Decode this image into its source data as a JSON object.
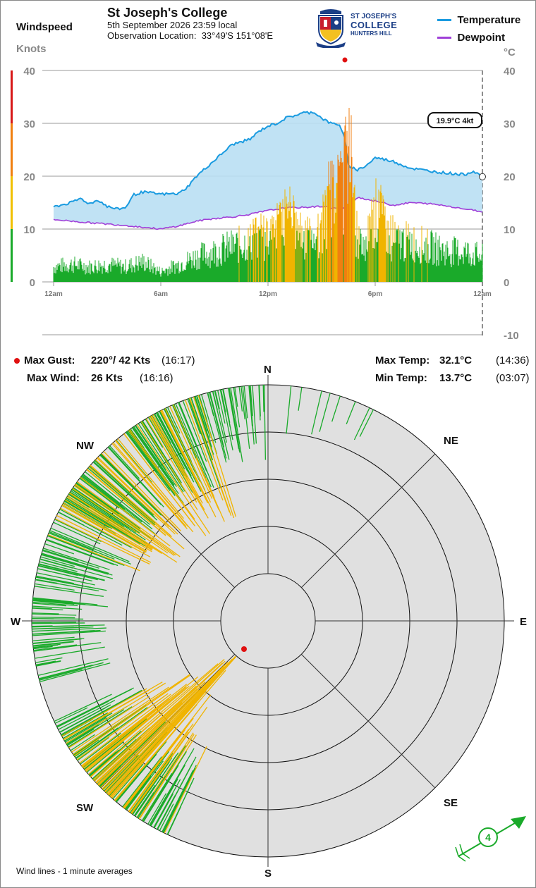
{
  "header": {
    "station": "St Joseph's College",
    "datetime": "5th September 2026  23:59 local",
    "location_label": "Observation Location:",
    "location_value": "33°49'S 151°08'E",
    "logo": {
      "line1": "ST JOSEPH'S",
      "line2": "COLLEGE",
      "line3": "HUNTERS HILL"
    }
  },
  "legend": {
    "temperature": "Temperature",
    "dewpoint": "Dewpoint"
  },
  "left_axis": {
    "title": "Windspeed",
    "units": "Knots"
  },
  "right_axis": {
    "units": "°C"
  },
  "readout": {
    "text": "19.9°C  4kt"
  },
  "stats": {
    "max_gust_label": "Max Gust:",
    "max_gust_value": "220°/  42 Kts",
    "max_gust_time": "(16:17)",
    "max_wind_label": "Max Wind:",
    "max_wind_value": "26 Kts",
    "max_wind_time": "(16:16)",
    "max_temp_label": "Max Temp:",
    "max_temp_value": "32.1°C",
    "max_temp_time": "(14:36)",
    "min_temp_label": "Min Temp:",
    "min_temp_value": "13.7°C",
    "min_temp_time": "(03:07)"
  },
  "compass": {
    "n": "N",
    "ne": "NE",
    "e": "E",
    "se": "SE",
    "s": "S",
    "sw": "SW",
    "w": "W",
    "nw": "NW"
  },
  "current_wind": {
    "speed_label": "4"
  },
  "footer": {
    "note": "Wind lines - 1 minute averages"
  },
  "colors": {
    "temperature": "#1a9be0",
    "temp_fill": "#b9dff3",
    "dewpoint": "#a040d8",
    "wind_low": "#1aaa2a",
    "wind_mid": "#f0b400",
    "wind_high": "#f07f10",
    "gust": "#e01010",
    "rose_bg": "#e0e0e0"
  },
  "chart_data": [
    {
      "type": "line",
      "title": "",
      "x_ticks": [
        "12am",
        "6am",
        "12pm",
        "6pm",
        "12am"
      ],
      "x_range_hours": [
        0,
        24
      ],
      "right_axis": {
        "label": "°C",
        "ylim": [
          -10,
          40
        ],
        "ticks": [
          40,
          30,
          20,
          10,
          0,
          -10
        ]
      },
      "left_axis": {
        "label": "Knots",
        "ylim": [
          0,
          40
        ],
        "ticks": [
          40,
          30,
          20,
          10,
          0
        ]
      },
      "wind_scale_bands": [
        {
          "from": 0,
          "to": 10,
          "color": "#1aaa2a"
        },
        {
          "from": 10,
          "to": 20,
          "color": "#f0c000"
        },
        {
          "from": 20,
          "to": 30,
          "color": "#f08010"
        },
        {
          "from": 30,
          "to": 40,
          "color": "#d81818"
        }
      ],
      "series": [
        {
          "name": "Temperature",
          "unit": "°C",
          "x": [
            0,
            1,
            1.5,
            2,
            2.5,
            3,
            3.5,
            4,
            4.5,
            5,
            5.5,
            6,
            7,
            7.5,
            8,
            8.5,
            9,
            9.5,
            10,
            10.5,
            11,
            11.5,
            12,
            12.5,
            13,
            13.5,
            14,
            14.6,
            15,
            15.5,
            16,
            16.3,
            16.5,
            16.8,
            17,
            17.5,
            18,
            18.5,
            19,
            20,
            21,
            22,
            23,
            23.5,
            24
          ],
          "y": [
            14.2,
            15,
            15.8,
            14.8,
            15.5,
            14.3,
            13.8,
            14,
            16.5,
            17,
            16.8,
            16.6,
            16.7,
            18,
            20,
            21.5,
            23,
            24.5,
            26,
            26.5,
            27,
            28.5,
            29.5,
            30,
            31,
            31.5,
            32,
            32.1,
            31,
            30,
            29.8,
            27,
            22,
            21.5,
            21.2,
            22,
            23.5,
            23.2,
            22.8,
            21.5,
            21,
            20.6,
            20.3,
            21,
            19.9
          ]
        },
        {
          "name": "Dewpoint",
          "unit": "°C",
          "x": [
            0,
            2,
            4,
            6,
            7,
            8,
            9,
            10,
            11,
            12,
            13,
            14,
            15,
            16,
            16.5,
            17,
            18,
            19,
            20,
            21,
            22,
            23,
            24
          ],
          "y": [
            11.8,
            11.2,
            10.7,
            10,
            10.6,
            11.5,
            12,
            12.3,
            12.8,
            13.5,
            14,
            14.1,
            14.3,
            13.8,
            14.2,
            16,
            15.3,
            14.5,
            15,
            14.8,
            14.4,
            13.8,
            13.3
          ]
        },
        {
          "name": "Wind speed (1 min avg)",
          "unit": "Knots",
          "x": [
            0,
            1,
            2,
            3,
            4,
            5,
            6,
            7,
            8,
            9,
            10,
            11,
            12,
            12.5,
            13,
            13.5,
            14,
            14.5,
            15,
            15.5,
            16,
            16.3,
            16.5,
            17,
            17.5,
            18,
            19,
            20,
            21,
            22,
            23,
            24
          ],
          "y": [
            3,
            3.5,
            3,
            3.5,
            3,
            4,
            2,
            3.5,
            5,
            6,
            7,
            8,
            9,
            10,
            12,
            11,
            9,
            8,
            10,
            16,
            17,
            20,
            26,
            8,
            7,
            14,
            8,
            8,
            7,
            6,
            6,
            5
          ]
        }
      ]
    },
    {
      "type": "scatter",
      "title": "",
      "description_series": "Wind rose: one line per minute from the centre outward in the wind direction, length = speed",
      "r_range": [
        0,
        40
      ],
      "rings": [
        5,
        10,
        15,
        20,
        25
      ],
      "dominant_directions_deg": [
        190,
        300
      ],
      "max_gust": {
        "direction_deg": 220,
        "speed_kt": 42,
        "time": "16:17"
      },
      "current": {
        "direction_deg": 240,
        "speed_kt": 4
      }
    }
  ]
}
